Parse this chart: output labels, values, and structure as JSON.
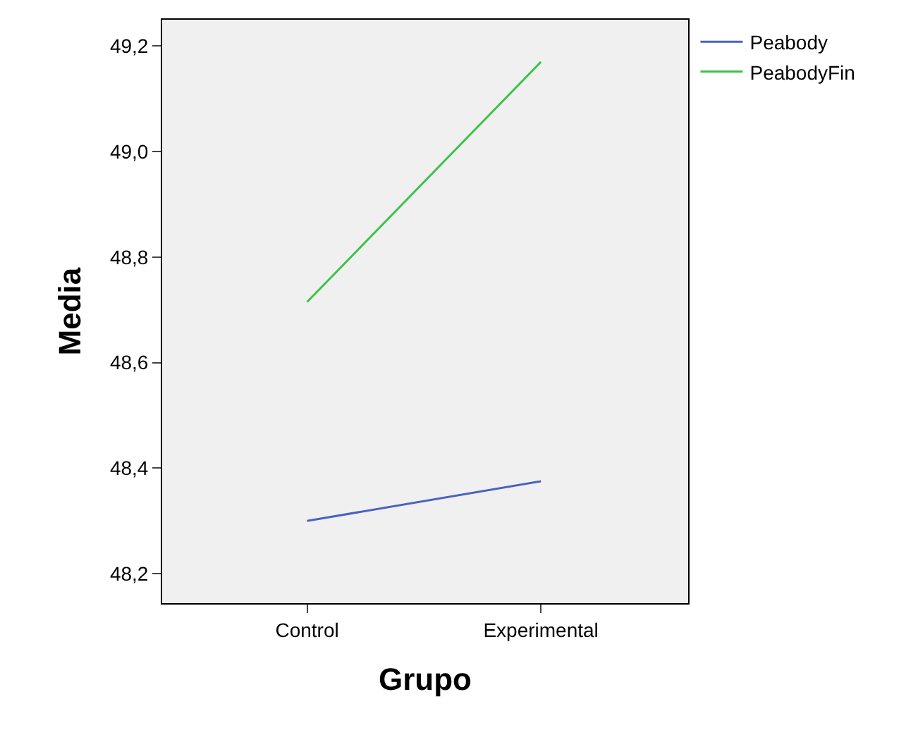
{
  "chart_data": {
    "type": "line",
    "xlabel": "Grupo",
    "ylabel": "Media",
    "categories": [
      "Control",
      "Experimental"
    ],
    "series": [
      {
        "name": "Peabody",
        "color": "#4a62c0",
        "values": [
          48.3,
          48.375
        ]
      },
      {
        "name": "PeabodyFin",
        "color": "#3cc24a",
        "values": [
          48.715,
          49.17
        ]
      }
    ],
    "ylim": [
      48.144,
      49.25
    ],
    "yticks": [
      {
        "value": 48.2,
        "label": "48,2"
      },
      {
        "value": 48.4,
        "label": "48,4"
      },
      {
        "value": 48.6,
        "label": "48,6"
      },
      {
        "value": 48.8,
        "label": "48,8"
      },
      {
        "value": 49.0,
        "label": "49,0"
      },
      {
        "value": 49.2,
        "label": "49,2"
      }
    ],
    "grid": false,
    "legend": "top right",
    "marker": "none",
    "line_style": "solid"
  }
}
